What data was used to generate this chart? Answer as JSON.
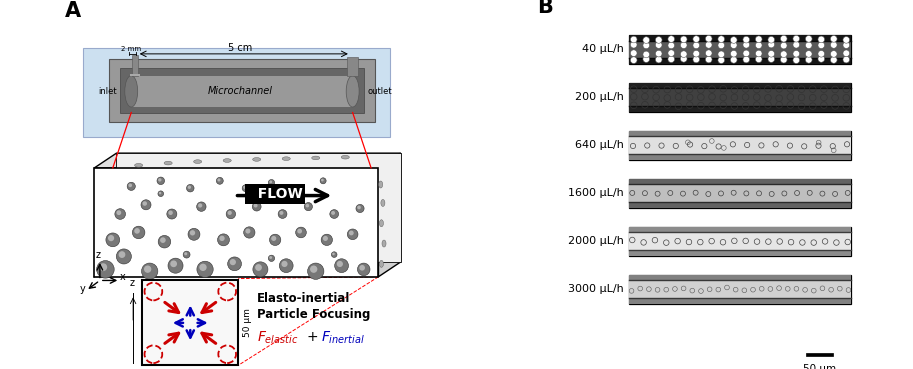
{
  "panel_A_label": "A",
  "panel_B_label": "B",
  "flow_label": "  FLOW",
  "microchannel_label": "Microchannel",
  "inlet_label": "inlet",
  "outlet_label": "outlet",
  "dim_5cm": "5 cm",
  "dim_2mm": "2 mm",
  "cross_section_width": "50 μm",
  "cross_section_height": "50 μm",
  "elasto_title_line1": "Elasto-inertial",
  "elasto_title_line2": "Particle Focusing",
  "flow_rates": [
    "40 μL/h",
    "200 μL/h",
    "640 μL/h",
    "1600 μL/h",
    "2000 μL/h",
    "3000 μL/h"
  ],
  "scale_bar_label": "50 μm",
  "bg_color": "#ffffff",
  "substrate_color": "#cce0f0",
  "channel_dark": "#888888",
  "channel_mid": "#aaaaaa",
  "channel_light": "#cccccc",
  "arrow_red": "#cc0000",
  "arrow_blue": "#0000bb",
  "text_color": "#000000",
  "cs_grad_outer": "#888888",
  "cs_grad_inner": "#dddddd"
}
